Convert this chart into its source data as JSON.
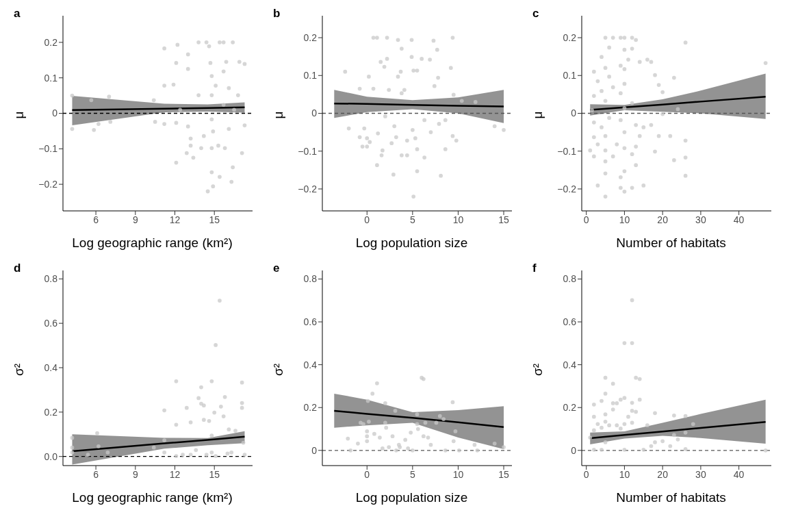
{
  "chart_data": [
    {
      "type": "scatter",
      "title": "a",
      "xlabel": "Log geographic range  (km²)",
      "ylabel": "μ",
      "xlim": [
        3.5,
        17.9
      ],
      "xticks": [
        6,
        9,
        12,
        15
      ],
      "ylim": [
        -0.275,
        0.275
      ],
      "yticks": [
        {
          "value": -0.2,
          "label": "−0.2"
        },
        {
          "value": -0.1,
          "label": "−0.1"
        },
        0,
        0.1,
        0.2
      ],
      "marker": "circle",
      "ref_lines": [
        {
          "axis": "y",
          "value": 0,
          "color": "#000000",
          "line_style": "dashed"
        }
      ],
      "series": [
        {
          "color": "#c8c8c8",
          "x": [
            4.2,
            4.2,
            5.65,
            5.85,
            6.2,
            7.0,
            7.1,
            10.4,
            10.5,
            11.2,
            11.2,
            11.2,
            11.9,
            12.1,
            12.1,
            12.1,
            12.2,
            12.4,
            13.0,
            13.0,
            13.0,
            13.2,
            13.2,
            12.9,
            13.4,
            13.8,
            13.8,
            14.0,
            14.2,
            14.4,
            14.5,
            14.6,
            14.7,
            14.8,
            14.8,
            14.8,
            14.9,
            14.8,
            14.8,
            14.9,
            15.1,
            15.3,
            15.4,
            15.4,
            15.7,
            15.7,
            15.7,
            15.8,
            15.9,
            16.1,
            16.1,
            16.3,
            16.4,
            16.4,
            16.5,
            16.8,
            16.9,
            17.1,
            17.3,
            17.3
          ],
          "values": [
            -0.044,
            0.05,
            0.037,
            -0.047,
            -0.03,
            0.047,
            -0.024,
            0.037,
            -0.024,
            0.078,
            -0.03,
            0.183,
            0.081,
            0.142,
            -0.027,
            -0.139,
            0.193,
            0.01,
            0.166,
            0.125,
            -0.037,
            -0.071,
            -0.091,
            -0.112,
            -0.125,
            0.2,
            0.051,
            -0.098,
            -0.064,
            0.2,
            -0.22,
            0.189,
            0.142,
            0.105,
            -0.017,
            0.051,
            -0.051,
            -0.098,
            -0.166,
            -0.206,
            0.078,
            -0.091,
            -0.179,
            0.2,
            0.2,
            0.118,
            0.024,
            -0.098,
            0.145,
            -0.044,
            0.071,
            -0.193,
            0.2,
            -0.152,
            0.01,
            0.051,
            0.145,
            -0.112,
            0.139,
            -0.034
          ]
        },
        {
          "type": "line",
          "marker": "none",
          "color": "#000000",
          "x": [
            4.2,
            11.2,
            14.5,
            17.3
          ],
          "values": [
            0.009,
            0.013,
            0.015,
            0.017
          ],
          "lower": [
            -0.034,
            0.003,
            0.005,
            0.002
          ],
          "upper": [
            0.049,
            0.027,
            0.025,
            0.031
          ]
        }
      ]
    },
    {
      "type": "scatter",
      "title": "b",
      "xlabel": "Log population size",
      "ylabel": "μ",
      "xlim": [
        -4.9,
        15.9
      ],
      "xticks": [
        0,
        5,
        10,
        15
      ],
      "ylim": [
        -0.258,
        0.258
      ],
      "yticks": [
        {
          "value": -0.2,
          "label": "−0.2"
        },
        {
          "value": -0.1,
          "label": "−0.1"
        },
        0,
        0.1,
        0.2
      ],
      "marker": "circle",
      "ref_lines": [
        {
          "axis": "y",
          "value": 0,
          "color": "#555555",
          "line_style": "dashed"
        }
      ],
      "series": [
        {
          "color": "#c8c8c8",
          "x": [
            -2.4,
            -2.0,
            -0.8,
            -0.8,
            -0.5,
            -0.3,
            0,
            0,
            0.2,
            0.3,
            0.7,
            0.7,
            1.1,
            1.1,
            1.2,
            1.5,
            1.6,
            1.7,
            1.9,
            2.0,
            2.2,
            2.2,
            2.4,
            2.7,
            2.9,
            3.0,
            3.2,
            3.4,
            3.4,
            3.7,
            3.8,
            3.8,
            3.8,
            4.1,
            4.4,
            4.4,
            4.9,
            4.9,
            5.0,
            5.1,
            5.1,
            5.3,
            5.5,
            5.5,
            5.5,
            6.0,
            6.3,
            6.3,
            6.9,
            7.0,
            7.3,
            7.4,
            7.7,
            7.8,
            7.9,
            8.1,
            8.6,
            8.6,
            9.2,
            9.4,
            9.5,
            9.4,
            9.8,
            10.4,
            11.9,
            14.0,
            15.0
          ],
          "values": [
            0.11,
            -0.04,
            0.065,
            -0.063,
            -0.088,
            -0.04,
            -0.066,
            -0.088,
            0.097,
            -0.076,
            0.065,
            0.2,
            0.2,
            -0.137,
            -0.053,
            0.136,
            -0.111,
            -0.098,
            0.123,
            -0.008,
            0.2,
            0.144,
            0.062,
            -0.079,
            -0.162,
            -0.034,
            -0.063,
            0.194,
            0.097,
            0.11,
            0.171,
            0.053,
            -0.111,
            0.062,
            -0.111,
            -0.072,
            0.194,
            0.149,
            -0.044,
            -0.22,
            0.113,
            -0.066,
            -0.095,
            -0.153,
            0.113,
            0.144,
            -0.117,
            -0.018,
            0.142,
            -0.05,
            0.192,
            0.072,
            0.168,
            0.094,
            -0.028,
            -0.165,
            -0.095,
            -0.018,
            0.12,
            0.2,
            0.049,
            -0.06,
            -0.072,
            0.033,
            0.03,
            -0.034,
            -0.044
          ]
        },
        {
          "type": "line",
          "marker": "none",
          "color": "#000000",
          "x": [
            -3.6,
            0,
            5,
            10,
            15
          ],
          "values": [
            0.026,
            0.025,
            0.022,
            0.02,
            0.018
          ],
          "lower": [
            -0.012,
            0.003,
            0.011,
            0.0,
            -0.026
          ],
          "upper": [
            0.062,
            0.044,
            0.035,
            0.042,
            0.062
          ]
        }
      ]
    },
    {
      "type": "scatter",
      "title": "c",
      "xlabel": "Number of habitats",
      "ylabel": "μ",
      "xlim": [
        -1.2,
        48.5
      ],
      "xticks": [
        0,
        10,
        20,
        30,
        40
      ],
      "ylim": [
        -0.258,
        0.258
      ],
      "yticks": [
        {
          "value": -0.2,
          "label": "−0.2"
        },
        {
          "value": -0.1,
          "label": "−0.1"
        },
        0,
        0.1,
        0.2
      ],
      "marker": "circle",
      "ref_lines": [
        {
          "axis": "y",
          "value": 0,
          "color": "#555555",
          "line_style": "dashed"
        }
      ],
      "series": [
        {
          "color": "#c8c8c8",
          "x": [
            1,
            1.5,
            2,
            2,
            2,
            2,
            2,
            3,
            3,
            3,
            4,
            4,
            4,
            5,
            5,
            5,
            5,
            5,
            5,
            5,
            5,
            6,
            6,
            6,
            7,
            7,
            7,
            8,
            9,
            9,
            9,
            9,
            9,
            9,
            10,
            10,
            10,
            10,
            10,
            10,
            10,
            10,
            10,
            11,
            12,
            12,
            12,
            12,
            12,
            13,
            13,
            13,
            13,
            14,
            14,
            15,
            15,
            16,
            17,
            17,
            18,
            18,
            19,
            19,
            20,
            20,
            22,
            23,
            23,
            24,
            26,
            26,
            26,
            26,
            47
          ],
          "values": [
            -0.098,
            0.008,
            0.11,
            -0.114,
            -0.063,
            -0.024,
            0.046,
            0.085,
            -0.191,
            -0.082,
            0.149,
            0.059,
            -0.037,
            0.2,
            0.12,
            0.033,
            -0.06,
            -0.098,
            -0.159,
            -0.22,
            -0.127,
            0.174,
            0.097,
            -0.012,
            0.2,
            -0.114,
            0.069,
            -0.082,
            0.2,
            0.126,
            0.053,
            -0.018,
            -0.169,
            -0.197,
            0.2,
            0.168,
            0.117,
            0.078,
            0.014,
            -0.05,
            -0.092,
            -0.153,
            -0.207,
            0.142,
            0.2,
            0.171,
            -0.197,
            -0.108,
            0.027,
            0.194,
            -0.031,
            -0.137,
            -0.088,
            0.136,
            -0.06,
            -0.191,
            -0.037,
            0.142,
            0.136,
            -0.031,
            0.101,
            -0.101,
            0.075,
            -0.06,
            0.056,
            -0.002,
            -0.06,
            0.094,
            -0.124,
            0.011,
            0.187,
            -0.072,
            -0.117,
            -0.165,
            0.133
          ]
        },
        {
          "type": "line",
          "marker": "none",
          "color": "#000000",
          "x": [
            1,
            10,
            20,
            30,
            47
          ],
          "values": [
            0.009,
            0.016,
            0.023,
            0.031,
            0.044
          ],
          "lower": [
            -0.006,
            0.008,
            0.004,
            0.0,
            -0.015
          ],
          "upper": [
            0.024,
            0.022,
            0.037,
            0.06,
            0.105
          ]
        }
      ]
    },
    {
      "type": "scatter",
      "title": "d",
      "xlabel": "Log geographic range  (km²)",
      "ylabel": "σ²",
      "xlim": [
        3.5,
        17.9
      ],
      "xticks": [
        6,
        9,
        12,
        15
      ],
      "ylim": [
        -0.041,
        0.838
      ],
      "yticks": [
        {
          "value": 0,
          "label": "0.0"
        },
        0.2,
        0.4,
        0.6,
        0.8
      ],
      "marker": "circle",
      "ref_lines": [
        {
          "axis": "y",
          "value": 0,
          "color": "#000000",
          "line_style": "dashed"
        }
      ],
      "series": [
        {
          "color": "#c8c8c8",
          "x": [
            4.2,
            4.2,
            4.2,
            5.4,
            6.1,
            6.2,
            6.9,
            10.4,
            11.2,
            11.2,
            11.2,
            12.1,
            12.1,
            12.1,
            12.9,
            13.2,
            13.2,
            13.8,
            14.0,
            14.0,
            14.2,
            14.2,
            14.6,
            14.8,
            14.8,
            14.8,
            15.0,
            15.1,
            15.4,
            15.5,
            15.7,
            15.8,
            16.1,
            16.3,
            16.6,
            17.1,
            17.1,
            17.1,
            17.2,
            17.3,
            12.6,
            13.6,
            14.4,
            15.1,
            16.0
          ],
          "values": [
            0.084,
            0.018,
            0.04,
            0.008,
            0.105,
            0.046,
            0.018,
            0.04,
            0.208,
            0.073,
            0.018,
            0.339,
            0.143,
            0.002,
            0.219,
            0.154,
            0.008,
            0.263,
            0.312,
            0.238,
            0.23,
            0.165,
            0.16,
            0.339,
            0.094,
            0.018,
            0.198,
            0.502,
            0.702,
            0.225,
            0.181,
            0.268,
            0.122,
            0.018,
            0.116,
            0.333,
            0.241,
            0.219,
            0.062,
            0.008,
            0.008,
            0.029,
            0.008,
            0.002,
            0.013
          ]
        },
        {
          "type": "line",
          "marker": "none",
          "color": "#000000",
          "x": [
            4.2,
            11.2,
            14.5,
            17.3
          ],
          "values": [
            0.024,
            0.059,
            0.075,
            0.089
          ],
          "lower": [
            -0.036,
            0.035,
            0.051,
            0.06
          ],
          "upper": [
            0.1,
            0.084,
            0.083,
            0.114
          ]
        }
      ]
    },
    {
      "type": "scatter",
      "title": "e",
      "xlabel": "Log population size",
      "ylabel": "σ²",
      "xlim": [
        -4.9,
        15.9
      ],
      "xticks": [
        0,
        5,
        10,
        15
      ],
      "ylim": [
        -0.071,
        0.84
      ],
      "yticks": [
        0,
        0.2,
        0.4,
        0.6,
        0.8
      ],
      "marker": "circle",
      "ref_lines": [
        {
          "axis": "y",
          "value": 0,
          "color": "#555555",
          "line_style": "dashed"
        }
      ],
      "series": [
        {
          "color": "#c8c8c8",
          "x": [
            -2.1,
            -1.8,
            -1.0,
            -0.7,
            -0.4,
            0,
            0,
            0,
            0.1,
            0.2,
            0.6,
            0.8,
            1.1,
            1.4,
            1.7,
            2.0,
            2.0,
            2.1,
            2.4,
            2.8,
            3.1,
            3.2,
            3.5,
            3.6,
            4.2,
            4.5,
            4.8,
            5.0,
            5.5,
            5.5,
            5.6,
            6.0,
            6.2,
            6.2,
            6.4,
            6.7,
            7.0,
            7.6,
            8.0,
            8.4,
            8.6,
            9.4,
            9.5,
            9.7,
            10.1,
            11.8,
            12.1,
            14.0,
            15.0
          ],
          "values": [
            0.055,
            0,
            0.032,
            0.129,
            0.123,
            0.089,
            0.066,
            0.043,
            0.231,
            0.134,
            0.265,
            0.077,
            0.313,
            0.06,
            0.009,
            0.22,
            0.129,
            0.106,
            0.015,
            0.066,
            0.185,
            0,
            0.026,
            0.015,
            0.049,
            0.009,
            0.083,
            0,
            0.168,
            0.123,
            0.1,
            0.339,
            0.333,
            0.066,
            0.129,
            0.06,
            0.026,
            0.129,
            0.16,
            0.146,
            0,
            0.225,
            0.043,
            0.089,
            0,
            0.026,
            0,
            0.032,
            0.015
          ]
        },
        {
          "type": "line",
          "marker": "none",
          "color": "#000000",
          "x": [
            -3.6,
            0,
            5,
            10,
            15
          ],
          "values": [
            0.185,
            0.17,
            0.152,
            0.131,
            0.109
          ],
          "lower": [
            0.106,
            0.117,
            0.129,
            0.06,
            0.006
          ],
          "upper": [
            0.265,
            0.237,
            0.178,
            0.188,
            0.206
          ]
        }
      ]
    },
    {
      "type": "scatter",
      "title": "f",
      "xlabel": "Number of habitats",
      "ylabel": "σ²",
      "xlim": [
        -1.2,
        48.5
      ],
      "xticks": [
        0,
        10,
        20,
        30,
        40
      ],
      "ylim": [
        -0.071,
        0.84
      ],
      "yticks": [
        0,
        0.2,
        0.4,
        0.6,
        0.8
      ],
      "marker": "circle",
      "ref_lines": [
        {
          "axis": "y",
          "value": 0,
          "color": "#555555",
          "line_style": "dashed"
        }
      ],
      "series": [
        {
          "color": "#c8c8c8",
          "x": [
            1,
            2,
            2,
            2,
            2,
            3,
            4,
            4,
            4,
            5,
            5,
            5,
            5,
            5,
            6,
            7,
            7,
            7,
            8,
            8,
            9,
            9,
            10,
            10,
            10,
            10,
            11,
            12,
            12,
            12,
            12,
            12,
            13,
            13,
            14,
            14,
            15,
            16,
            17,
            18,
            18,
            20,
            22,
            23,
            23,
            24,
            26,
            26,
            26,
            28,
            47
          ],
          "values": [
            0.06,
            0.214,
            0.157,
            0.003,
            0.094,
            0.123,
            0.231,
            0.106,
            0.003,
            0.339,
            0.265,
            0.168,
            0.134,
            0.038,
            0.117,
            0.311,
            0.22,
            0.191,
            0.22,
            0.117,
            0.237,
            0.102,
            0.501,
            0.245,
            0.123,
            0.003,
            0.157,
            0.701,
            0.501,
            0.222,
            0.185,
            0.129,
            0.339,
            0.18,
            0.333,
            0.237,
            0.003,
            0.117,
            0.02,
            0.174,
            0.038,
            0.043,
            0.02,
            0.163,
            0.072,
            0.051,
            0.16,
            0.083,
            0.006,
            0.123,
            0
          ]
        },
        {
          "type": "line",
          "marker": "none",
          "color": "#000000",
          "x": [
            1,
            10,
            20,
            30,
            47
          ],
          "values": [
            0.057,
            0.072,
            0.088,
            0.105,
            0.133
          ],
          "lower": [
            0.028,
            0.055,
            0.068,
            0.058,
            0.031
          ],
          "upper": [
            0.083,
            0.089,
            0.129,
            0.17,
            0.237
          ]
        }
      ]
    }
  ]
}
